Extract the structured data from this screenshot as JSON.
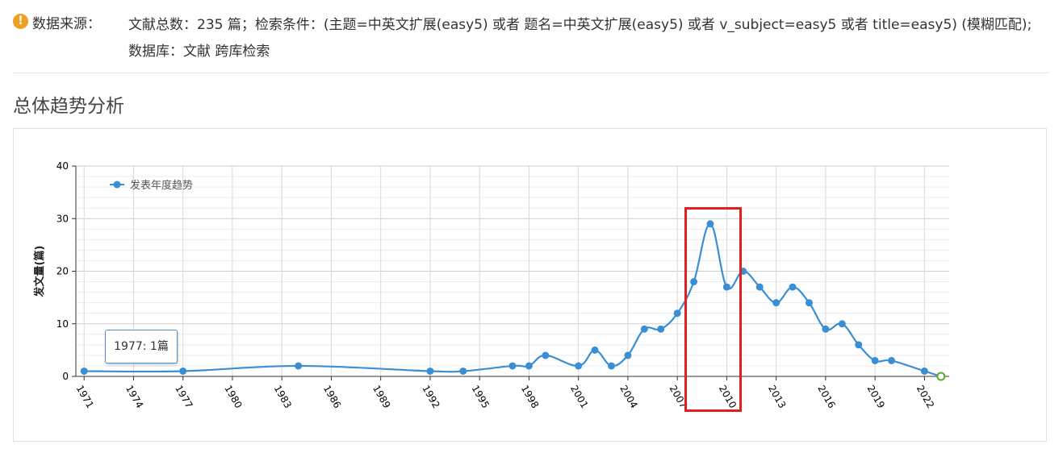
{
  "source": {
    "icon": "warning-icon",
    "icon_glyph": "!",
    "label": "数据来源：",
    "text": "文献总数：235 篇；检索条件：(主题=中英文扩展(easy5) 或者 题名=中英文扩展(easy5) 或者 v_subject=easy5 或者 title=easy5) (模糊匹配); 数据库：文献 跨库检索"
  },
  "section_title": "总体趋势分析",
  "tooltip": {
    "text": "1977: 1篇"
  },
  "chart_data": {
    "type": "line",
    "ylabel": "发文量(篇)",
    "xlabel": "",
    "ylim": [
      0,
      40
    ],
    "yticks": [
      0,
      10,
      20,
      30,
      40
    ],
    "xlim": [
      1970.5,
      2023.5
    ],
    "xticks": [
      "1971",
      "1974",
      "1977",
      "1980",
      "1983",
      "1986",
      "1989",
      "1992",
      "1995",
      "1998",
      "2001",
      "2004",
      "2007",
      "2010",
      "2013",
      "2016",
      "2019",
      "2022"
    ],
    "legend": "top-left",
    "grid": true,
    "series": [
      {
        "name": "发表年度趋势",
        "color": "#3a8ed4",
        "points": [
          [
            1971,
            1
          ],
          [
            1977,
            1
          ],
          [
            1984,
            2
          ],
          [
            1992,
            1
          ],
          [
            1994,
            1
          ],
          [
            1997,
            2
          ],
          [
            1998,
            2
          ],
          [
            1999,
            4
          ],
          [
            2001,
            2
          ],
          [
            2002,
            5
          ],
          [
            2003,
            2
          ],
          [
            2004,
            4
          ],
          [
            2005,
            9
          ],
          [
            2006,
            9
          ],
          [
            2007,
            12
          ],
          [
            2008,
            18
          ],
          [
            2009,
            29
          ],
          [
            2010,
            17
          ],
          [
            2011,
            20
          ],
          [
            2012,
            17
          ],
          [
            2013,
            14
          ],
          [
            2014,
            17
          ],
          [
            2015,
            14
          ],
          [
            2016,
            9
          ],
          [
            2017,
            10
          ],
          [
            2018,
            6
          ],
          [
            2019,
            3
          ],
          [
            2020,
            3
          ],
          [
            2022,
            1
          ],
          [
            2023,
            0
          ]
        ]
      }
    ],
    "highlight_range": [
      2008,
      2011
    ],
    "highlight_color": "#e02020"
  }
}
